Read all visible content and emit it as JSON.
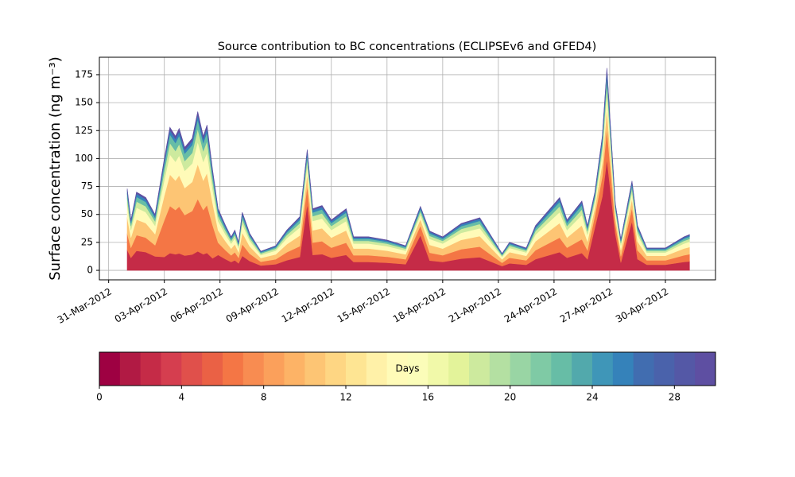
{
  "chart_data": {
    "type": "stacked_area",
    "title": "Source contribution to BC concentrations (ECLIPSEv6 and GFED4)",
    "y_label": "Surface concentration (ng m⁻³)",
    "grid": true,
    "xlim": [
      -0.5,
      32.7
    ],
    "xticks": [
      {
        "value": 0,
        "label": "31-Mar-2012"
      },
      {
        "value": 3,
        "label": "03-Apr-2012"
      },
      {
        "value": 6,
        "label": "06-Apr-2012"
      },
      {
        "value": 9,
        "label": "09-Apr-2012"
      },
      {
        "value": 12,
        "label": "12-Apr-2012"
      },
      {
        "value": 15,
        "label": "15-Apr-2012"
      },
      {
        "value": 18,
        "label": "18-Apr-2012"
      },
      {
        "value": 21,
        "label": "21-Apr-2012"
      },
      {
        "value": 24,
        "label": "24-Apr-2012"
      },
      {
        "value": 27,
        "label": "27-Apr-2012"
      },
      {
        "value": 30,
        "label": "30-Apr-2012"
      }
    ],
    "ylim": [
      -8.5,
      190.6
    ],
    "yticks": [
      0,
      25,
      50,
      75,
      100,
      125,
      150,
      175
    ],
    "x": [
      1.0,
      1.2,
      1.5,
      2.0,
      2.5,
      3.0,
      3.3,
      3.6,
      3.8,
      4.1,
      4.5,
      4.8,
      5.1,
      5.3,
      5.6,
      5.9,
      6.3,
      6.6,
      6.8,
      7.0,
      7.2,
      7.6,
      8.2,
      9.0,
      9.6,
      10.3,
      10.7,
      11.0,
      11.5,
      12.0,
      12.8,
      13.2,
      14.0,
      15.0,
      16.0,
      16.8,
      17.3,
      18.0,
      19.0,
      20.0,
      21.2,
      21.6,
      22.5,
      23.0,
      24.3,
      24.7,
      25.5,
      25.8,
      26.2,
      26.6,
      26.85,
      27.0,
      27.3,
      27.6,
      28.2,
      28.5,
      29.0,
      30.0,
      31.0,
      31.3
    ],
    "series": [
      {
        "color": "#c52b47",
        "values": [
          18.3,
          11.3,
          17.5,
          16.3,
          12.5,
          12,
          15.4,
          14.4,
          15.2,
          13.2,
          14.2,
          17,
          14.4,
          15.6,
          10.8,
          13.8,
          10,
          7.5,
          9,
          6.3,
          13,
          8.3,
          4.3,
          5.5,
          9,
          12,
          59.4,
          13.8,
          14.5,
          11.3,
          13.8,
          7.5,
          7.5,
          6.8,
          5.5,
          31.4,
          8.8,
          7.5,
          10.5,
          11.8,
          3.8,
          6.3,
          5,
          10,
          16.3,
          11.3,
          15.5,
          10,
          38.5,
          66,
          99.6,
          77,
          33,
          7,
          44,
          10,
          5,
          5,
          7.5,
          8
        ]
      },
      {
        "color": "#f47645",
        "values": [
          14.6,
          9,
          14,
          13,
          10,
          33,
          42.2,
          39.6,
          41.9,
          36.3,
          38.9,
          46.9,
          39.6,
          42.9,
          29.7,
          11,
          8,
          6,
          7.2,
          5,
          10.4,
          6.6,
          3.4,
          4.4,
          7.2,
          9.6,
          16.2,
          11,
          11.6,
          9,
          11,
          6,
          6,
          5.4,
          4.4,
          8.6,
          7,
          6,
          8.4,
          9.4,
          3,
          5,
          4,
          8,
          13,
          9,
          12.4,
          8,
          10.5,
          18,
          27.2,
          21,
          9,
          5.6,
          12,
          8,
          4,
          4,
          6,
          6.4
        ]
      },
      {
        "color": "#fdc574",
        "values": [
          14.6,
          9,
          14,
          13,
          10,
          22,
          28.2,
          26.4,
          27.9,
          24.2,
          26,
          31.2,
          26.4,
          28.6,
          19.8,
          11,
          8,
          6,
          7.2,
          5,
          10.4,
          6.6,
          3.4,
          4.4,
          7.2,
          9.6,
          10.8,
          11,
          11.6,
          9,
          11,
          6,
          6,
          5.4,
          4.4,
          5.7,
          7,
          6,
          8.4,
          9.4,
          3,
          5,
          4,
          8,
          13,
          9,
          12.4,
          8,
          7,
          12,
          18.1,
          14,
          6,
          5.6,
          8,
          8,
          4,
          4,
          6,
          6.4
        ]
      },
      {
        "color": "#fffbb8",
        "values": [
          11,
          6.8,
          10.5,
          9.8,
          7.5,
          14,
          17.9,
          16.8,
          17.8,
          15.4,
          16.5,
          19.9,
          16.8,
          18.2,
          12.6,
          8.3,
          6,
          4.5,
          5.4,
          3.8,
          7.8,
          5,
          2.6,
          3.3,
          5.4,
          7.2,
          7.6,
          8.3,
          8.7,
          6.8,
          8.3,
          4.5,
          4.5,
          4.1,
          3.3,
          4,
          5.3,
          4.5,
          6.3,
          7.1,
          2.3,
          3.8,
          3,
          6,
          9.8,
          6.8,
          9.3,
          6,
          4.9,
          8.4,
          12.7,
          9.8,
          4.2,
          4.2,
          5.6,
          6,
          3,
          3,
          4.5,
          4.8
        ]
      },
      {
        "color": "#cdea9e",
        "values": [
          5.8,
          3.6,
          5.6,
          5.2,
          4,
          8,
          10.2,
          9.6,
          10.2,
          8.8,
          9.4,
          11.4,
          9.6,
          10.4,
          7.2,
          4.4,
          3.2,
          2.4,
          2.9,
          2,
          4.2,
          2.6,
          1.4,
          1.8,
          2.9,
          3.8,
          5.4,
          4.4,
          4.6,
          3.6,
          4.4,
          2.4,
          2.4,
          2.2,
          1.8,
          2.9,
          2.8,
          2.4,
          3.4,
          3.8,
          1.2,
          2,
          1.6,
          3.2,
          5.2,
          3.6,
          5,
          3.2,
          3.5,
          6,
          9,
          7,
          3,
          2.2,
          4,
          3.2,
          1.6,
          1.6,
          2.4,
          2.6
        ]
      },
      {
        "color": "#67bda6",
        "values": [
          4.4,
          2.7,
          4.2,
          3.9,
          3,
          6,
          7.7,
          7.2,
          7.6,
          6.6,
          7.1,
          8.5,
          7.2,
          7.8,
          5.4,
          3.3,
          2.4,
          1.8,
          2.2,
          1.5,
          3.1,
          2,
          1,
          1.3,
          2.2,
          2.9,
          4.3,
          3.3,
          3.5,
          2.7,
          3.3,
          1.8,
          1.8,
          1.6,
          1.3,
          2.3,
          2.1,
          1.8,
          2.5,
          2.8,
          0.9,
          1.5,
          1.2,
          2.4,
          3.9,
          2.7,
          3.7,
          2.4,
          2.8,
          4.8,
          7.2,
          5.6,
          2.4,
          1.7,
          3.2,
          2.4,
          1.2,
          1.2,
          1.8,
          1.9
        ]
      },
      {
        "color": "#3582ba",
        "values": [
          2.9,
          1.8,
          2.8,
          2.6,
          2,
          3,
          3.8,
          3.6,
          3.8,
          3.3,
          3.5,
          4.3,
          3.6,
          3.9,
          2.7,
          2.2,
          1.6,
          1.2,
          1.4,
          1,
          2.1,
          1.3,
          0.7,
          0.9,
          1.4,
          1.9,
          3.2,
          2.2,
          2.3,
          1.8,
          2.2,
          1.2,
          1.2,
          1.1,
          0.9,
          1.7,
          1.4,
          1.2,
          1.7,
          1.9,
          0.6,
          1,
          0.8,
          1.6,
          2.6,
          1.8,
          2.5,
          1.6,
          2.1,
          3.6,
          5.4,
          4.2,
          1.8,
          1.1,
          2.4,
          1.6,
          0.8,
          0.8,
          1.2,
          1.3
        ]
      },
      {
        "color": "#5e4fa2",
        "values": [
          1.5,
          0.9,
          1.4,
          1.3,
          1,
          2,
          2.6,
          2.4,
          2.5,
          2.2,
          2.4,
          2.8,
          2.4,
          2.6,
          1.8,
          1.1,
          0.8,
          0.6,
          0.7,
          0.5,
          1,
          0.7,
          0.3,
          0.4,
          0.7,
          1,
          1.1,
          1.1,
          1.2,
          0.9,
          1.1,
          0.6,
          0.6,
          0.5,
          0.4,
          0.6,
          0.7,
          0.6,
          0.8,
          0.9,
          0.3,
          0.5,
          0.4,
          0.8,
          1.3,
          0.9,
          1.2,
          0.8,
          0.7,
          1.2,
          1.8,
          1.4,
          0.6,
          0.6,
          0.8,
          0.8,
          0.4,
          0.4,
          0.6,
          0.6
        ]
      }
    ],
    "colorbar": {
      "label": "Days",
      "lim": [
        0,
        30
      ],
      "ticks": [
        0,
        4,
        8,
        12,
        16,
        20,
        24,
        28
      ],
      "colors": [
        "#9e0142",
        "#b11a44",
        "#c52b47",
        "#d53e4f",
        "#e0504b",
        "#ea6145",
        "#f47645",
        "#f88c51",
        "#fba05b",
        "#fdb366",
        "#fdc574",
        "#fed683",
        "#fee593",
        "#fff1a8",
        "#fffbb8",
        "#fbfdb9",
        "#f1f9a9",
        "#e3f39a",
        "#cdea9e",
        "#b4e0a2",
        "#99d5a4",
        "#7fcaa5",
        "#67bda6",
        "#52a9ac",
        "#3f96b8",
        "#3582ba",
        "#416db0",
        "#4a62ab",
        "#5458a6",
        "#5e4fa2"
      ]
    }
  }
}
